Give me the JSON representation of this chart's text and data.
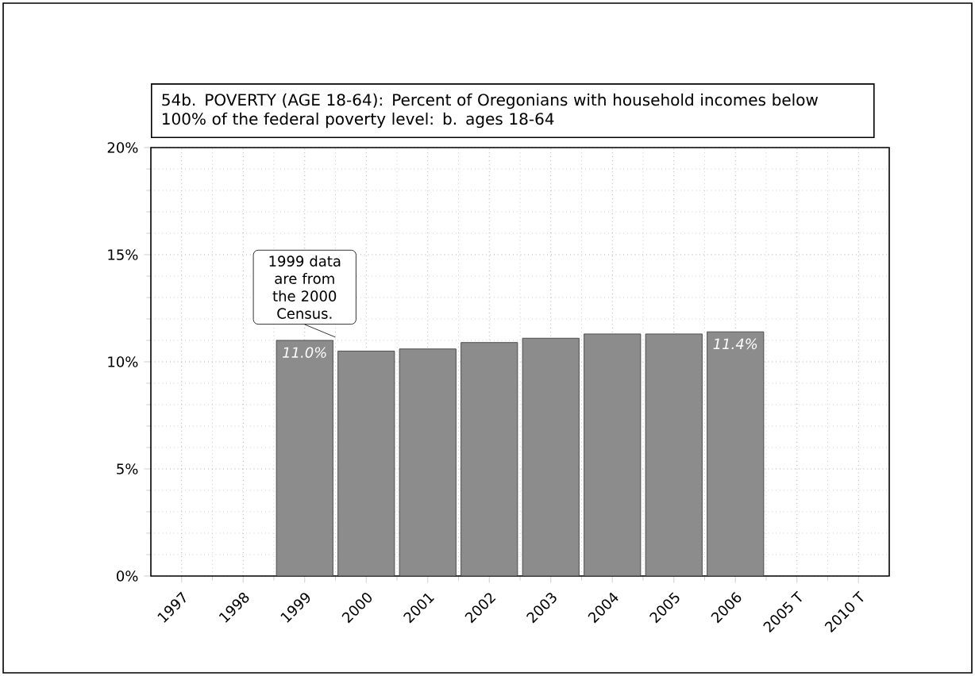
{
  "chart_data": {
    "type": "bar",
    "title": "54b. POVERTY (AGE 18-64): Percent of Oregonians with household incomes below 100% of the federal poverty level: b. ages 18-64",
    "categories": [
      "1997",
      "1998",
      "1999",
      "2000",
      "2001",
      "2002",
      "2003",
      "2004",
      "2005",
      "2006",
      "2005 T",
      "2010 T"
    ],
    "values": [
      null,
      null,
      11.0,
      10.5,
      10.6,
      10.9,
      11.1,
      11.3,
      11.3,
      11.4,
      null,
      null
    ],
    "value_labels": [
      null,
      null,
      "11.0%",
      null,
      null,
      null,
      null,
      null,
      null,
      "11.4%",
      null,
      null
    ],
    "color": "#8c8c8c",
    "ylim": [
      0,
      20
    ],
    "yticks": [
      {
        "value": 0,
        "label": "0%"
      },
      {
        "value": 5,
        "label": "5%"
      },
      {
        "value": 10,
        "label": "10%"
      },
      {
        "value": 15,
        "label": "15%"
      },
      {
        "value": 20,
        "label": "20%"
      }
    ],
    "grid": true,
    "annotations": [
      {
        "text": "1999 data are from the 2000 Census.",
        "x": "1999",
        "y": 11.0
      }
    ]
  }
}
